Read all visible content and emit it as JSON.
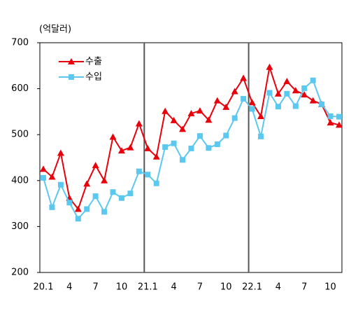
{
  "chart_data": {
    "type": "line",
    "y_axis_label": "(억달러)",
    "categories": [
      "20.1",
      null,
      null,
      "4",
      null,
      null,
      "7",
      null,
      null,
      "10",
      null,
      null,
      "21.1",
      null,
      null,
      "4",
      null,
      null,
      "7",
      null,
      null,
      "10",
      null,
      null,
      "22.1",
      null,
      null,
      "4",
      null,
      null,
      "7",
      null,
      null,
      "10",
      null
    ],
    "series": [
      {
        "name": "수출",
        "color": "#e8000b",
        "marker": "triangle",
        "values": [
          425,
          408,
          460,
          362,
          338,
          393,
          433,
          400,
          495,
          465,
          472,
          524,
          470,
          452,
          551,
          531,
          512,
          546,
          552,
          532,
          574,
          560,
          594,
          623,
          570,
          540,
          647,
          589,
          616,
          596,
          587,
          574,
          566,
          526,
          521
        ]
      },
      {
        "name": "수입",
        "color": "#5bc8f0",
        "marker": "square",
        "values": [
          406,
          342,
          391,
          352,
          317,
          338,
          366,
          332,
          375,
          362,
          372,
          420,
          413,
          394,
          473,
          481,
          445,
          470,
          497,
          471,
          479,
          498,
          536,
          578,
          556,
          496,
          591,
          561,
          589,
          562,
          601,
          618,
          566,
          540,
          539
        ]
      }
    ],
    "ylim": [
      200,
      700
    ],
    "yticks": [
      200,
      300,
      400,
      500,
      600,
      700
    ],
    "legend": "upper-left"
  }
}
